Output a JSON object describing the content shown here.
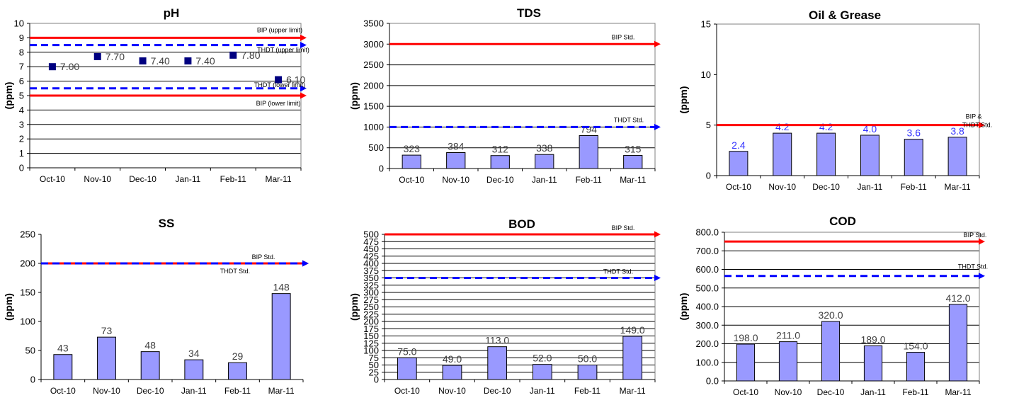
{
  "chart_data": [
    {
      "type": "scatter",
      "title": "pH",
      "xlabel": "",
      "ylabel": "(ppm)",
      "categories": [
        "Oct-10",
        "Nov-10",
        "Dec-10",
        "Jan-11",
        "Feb-11",
        "Mar-11"
      ],
      "values": [
        7.0,
        7.7,
        7.4,
        7.4,
        7.8,
        6.1
      ],
      "data_labels": [
        "7.00",
        "7.70",
        "7.40",
        "7.40",
        "7.80",
        "6.10"
      ],
      "ylim": [
        0,
        10
      ],
      "yticks": [
        "0",
        "1",
        "2",
        "3",
        "4",
        "5",
        "6",
        "7",
        "8",
        "9",
        "10"
      ],
      "grid": true,
      "reference_lines": [
        {
          "label": "BIP (upper limit)",
          "value": 9.0,
          "style": "solid",
          "color": "#ff0000"
        },
        {
          "label": "THDT (upper limit)",
          "value": 8.5,
          "style": "dashed",
          "color": "#0000ff"
        },
        {
          "label": "THDT (lower limit)",
          "value": 5.5,
          "style": "dashed",
          "color": "#0000ff"
        },
        {
          "label": "BIP (lower limit)",
          "value": 5.0,
          "style": "solid",
          "color": "#ff0000"
        }
      ],
      "marker_color": "#000080"
    },
    {
      "type": "bar",
      "title": "TDS",
      "xlabel": "",
      "ylabel": "(ppm)",
      "categories": [
        "Oct-10",
        "Nov-10",
        "Dec-10",
        "Jan-11",
        "Feb-11",
        "Mar-11"
      ],
      "values": [
        323,
        384,
        312,
        338,
        794,
        315
      ],
      "data_labels": [
        "323",
        "384",
        "312",
        "338",
        "794",
        "315"
      ],
      "ylim": [
        0,
        3500
      ],
      "yticks": [
        "0",
        "500",
        "1000",
        "1500",
        "2000",
        "2500",
        "3000",
        "3500"
      ],
      "grid": true,
      "reference_lines": [
        {
          "label": "BIP Std.",
          "value": 3000,
          "style": "solid",
          "color": "#ff0000"
        },
        {
          "label": "THDT Std.",
          "value": 1000,
          "style": "dashed",
          "color": "#0000ff"
        }
      ],
      "bar_color": "#9999ff"
    },
    {
      "type": "bar",
      "title": "Oil & Grease",
      "xlabel": "",
      "ylabel": "(ppm)",
      "categories": [
        "Oct-10",
        "Nov-10",
        "Dec-10",
        "Jan-11",
        "Feb-11",
        "Mar-11"
      ],
      "values": [
        2.4,
        4.2,
        4.2,
        4.0,
        3.6,
        3.8
      ],
      "data_labels": [
        "2.4",
        "4.2",
        "4.2",
        "4.0",
        "3.6",
        "3.8"
      ],
      "ylim": [
        0,
        15
      ],
      "yticks": [
        "0",
        "5",
        "10",
        "15"
      ],
      "grid": false,
      "reference_lines": [
        {
          "label": "BIP &",
          "label2": "THDT Std.",
          "value": 5,
          "style": "solid",
          "color": "#ff0000"
        }
      ],
      "bar_color": "#9999ff",
      "label_color": "#3333ff"
    },
    {
      "type": "bar",
      "title": "SS",
      "xlabel": "",
      "ylabel": "(ppm)",
      "categories": [
        "Oct-10",
        "Nov-10",
        "Dec-10",
        "Jan-11",
        "Feb-11",
        "Mar-11"
      ],
      "values": [
        43,
        73,
        48,
        34,
        29,
        148
      ],
      "data_labels": [
        "43",
        "73",
        "48",
        "34",
        "29",
        "148"
      ],
      "ylim": [
        0,
        250
      ],
      "yticks": [
        "0",
        "50",
        "100",
        "150",
        "200",
        "250"
      ],
      "grid": false,
      "reference_lines": [
        {
          "label": "BIP Std.",
          "value": 200,
          "style": "solid",
          "color": "#ff0000"
        },
        {
          "label": "THDT Std.",
          "value": 200,
          "style": "dashed",
          "color": "#0000ff"
        }
      ],
      "bar_color": "#9999ff"
    },
    {
      "type": "bar",
      "title": "BOD",
      "xlabel": "",
      "ylabel": "(ppm)",
      "categories": [
        "Oct-10",
        "Nov-10",
        "Dec-10",
        "Jan-11",
        "Feb-11",
        "Mar-11"
      ],
      "values": [
        75.0,
        49.0,
        113.0,
        52.0,
        50.0,
        149.0
      ],
      "data_labels": [
        "75.0",
        "49.0",
        "113.0",
        "52.0",
        "50.0",
        "149.0"
      ],
      "ylim": [
        0,
        500
      ],
      "yticks": [
        "0",
        "25",
        "50",
        "75",
        "100",
        "125",
        "150",
        "175",
        "200",
        "225",
        "250",
        "275",
        "300",
        "325",
        "350",
        "375",
        "400",
        "425",
        "450",
        "475",
        "500"
      ],
      "grid": true,
      "reference_lines": [
        {
          "label": "BIP Std.",
          "value": 500,
          "style": "solid",
          "color": "#ff0000"
        },
        {
          "label": "THDT Std.",
          "value": 350,
          "style": "dashed",
          "color": "#0000ff"
        }
      ],
      "bar_color": "#9999ff"
    },
    {
      "type": "bar",
      "title": "COD",
      "xlabel": "",
      "ylabel": "(ppm)",
      "categories": [
        "Oct-10",
        "Nov-10",
        "Dec-10",
        "Jan-11",
        "Feb-11",
        "Mar-11"
      ],
      "values": [
        198.0,
        211.0,
        320.0,
        189.0,
        154.0,
        412.0
      ],
      "data_labels": [
        "198.0",
        "211.0",
        "320.0",
        "189.0",
        "154.0",
        "412.0"
      ],
      "ylim": [
        0,
        800
      ],
      "yticks": [
        "0.0",
        "100.0",
        "200.0",
        "300.0",
        "400.0",
        "500.0",
        "600.0",
        "700.0",
        "800.0"
      ],
      "grid": true,
      "reference_lines": [
        {
          "label": "BIP Std.",
          "value": 750,
          "style": "solid",
          "color": "#ff0000"
        },
        {
          "label": "THDT Std.",
          "value": 565,
          "style": "dashed",
          "color": "#0000ff"
        }
      ],
      "bar_color": "#9999ff"
    }
  ]
}
